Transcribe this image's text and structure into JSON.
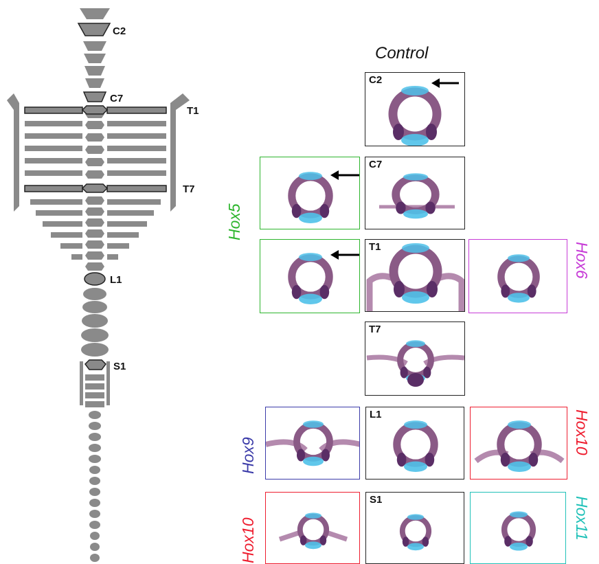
{
  "control_title": "Control",
  "skeleton_labels": {
    "c2": "C2",
    "c7": "C7",
    "t1": "T1",
    "t7": "T7",
    "l1": "L1",
    "s1": "S1"
  },
  "panels": {
    "control_c2": "C2",
    "control_c7": "C7",
    "control_t1": "T1",
    "control_t7": "T7",
    "control_l1": "L1",
    "control_s1": "S1"
  },
  "mutants": {
    "hox5": "Hox5",
    "hox6": "Hox6",
    "hox9": "Hox9",
    "hox10_right": "Hox10",
    "hox10_left": "Hox10",
    "hox11": "Hox11"
  },
  "colors": {
    "control": "#222222",
    "hox5": "#2db52d",
    "hox6": "#c63ad6",
    "hox9": "#3a3aa8",
    "hox10": "#ee1c2e",
    "hox11": "#1fc1b8",
    "bone": "#8a5a86",
    "cartilage": "#4fc1e9"
  }
}
